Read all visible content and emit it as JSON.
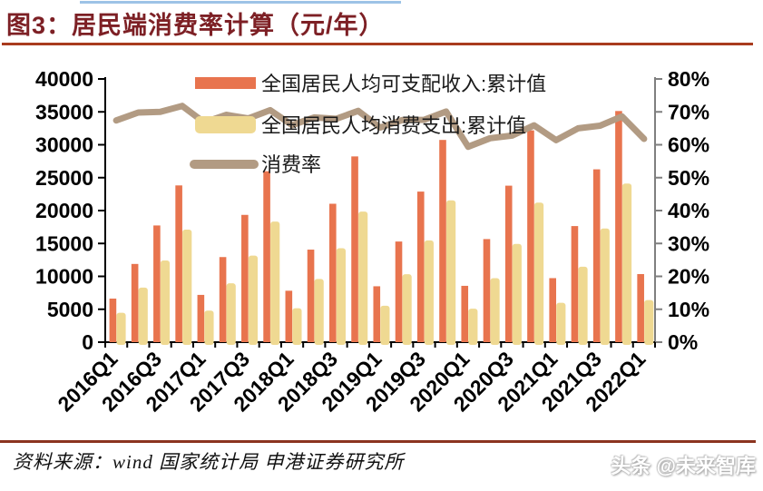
{
  "header": {
    "title": "图3：居民端消费率计算（元/年）"
  },
  "footer": {
    "source": "资料来源：wind 国家统计局 申港证券研究所",
    "watermark": "头条 @未来智库"
  },
  "colors": {
    "income_bar": "#E8744E",
    "consumption_bar": "#EFD992",
    "rate_line": "#B29B83",
    "title_text": "#7D2025",
    "title_rule": "#A93B1E",
    "footer_rule": "#8B3420",
    "top_accent": "#9DC3E6",
    "axis_left": "#000000",
    "axis_right": "#7F7F7F"
  },
  "chart_data": {
    "type": "bar+line combo",
    "title": "居民端消费率计算（元/年）",
    "grid": false,
    "legend_position": "inside top-left",
    "categories": [
      "2016Q1",
      "2016Q2",
      "2016Q3",
      "2016Q4",
      "2017Q1",
      "2017Q2",
      "2017Q3",
      "2017Q4",
      "2018Q1",
      "2018Q2",
      "2018Q3",
      "2018Q4",
      "2019Q1",
      "2019Q2",
      "2019Q3",
      "2019Q4",
      "2020Q1",
      "2020Q2",
      "2020Q3",
      "2020Q4",
      "2021Q1",
      "2021Q2",
      "2021Q3",
      "2021Q4",
      "2022Q1"
    ],
    "x_tick_labels": [
      "2016Q1",
      "2016Q3",
      "2017Q1",
      "2017Q3",
      "2018Q1",
      "2018Q3",
      "2019Q1",
      "2019Q3",
      "2020Q1",
      "2020Q3",
      "2021Q1",
      "2021Q3",
      "2022Q1"
    ],
    "series": [
      {
        "name": "全国居民人均可支配收入:累计值",
        "type": "bar",
        "axis": "left",
        "color": "#E8744E",
        "values": [
          6619,
          11886,
          17735,
          23821,
          7184,
          12932,
          19342,
          25974,
          7815,
          14063,
          21035,
          28228,
          8493,
          15294,
          22882,
          30733,
          8561,
          15666,
          23781,
          32189,
          9730,
          17642,
          26265,
          35128,
          10345
        ]
      },
      {
        "name": "全国居民人均消费支出:累计值",
        "type": "bar",
        "axis": "left",
        "color": "#EFD992",
        "values": [
          4460,
          8300,
          12410,
          17111,
          4796,
          8940,
          13162,
          18322,
          5162,
          9609,
          14281,
          19853,
          5538,
          10330,
          15464,
          21559,
          5082,
          9718,
          14923,
          21210,
          5978,
          11471,
          17275,
          24100,
          6393
        ]
      },
      {
        "name": "消费率",
        "type": "line",
        "axis": "right",
        "color": "#B29B83",
        "values_pct": [
          67.4,
          69.8,
          70.0,
          71.8,
          66.8,
          69.1,
          68.0,
          70.5,
          66.0,
          68.3,
          67.9,
          70.3,
          65.2,
          67.5,
          67.6,
          70.1,
          59.4,
          62.0,
          62.8,
          65.9,
          61.4,
          65.0,
          65.8,
          68.6,
          61.8
        ]
      }
    ],
    "left_axis": {
      "min": 0,
      "max": 40000,
      "step": 5000,
      "ticks": [
        "0",
        "5000",
        "10000",
        "15000",
        "20000",
        "25000",
        "30000",
        "35000",
        "40000"
      ]
    },
    "right_axis": {
      "min": 0,
      "max": 80,
      "step": 10,
      "ticks": [
        "0%",
        "10%",
        "20%",
        "30%",
        "40%",
        "50%",
        "60%",
        "70%",
        "80%"
      ]
    }
  }
}
